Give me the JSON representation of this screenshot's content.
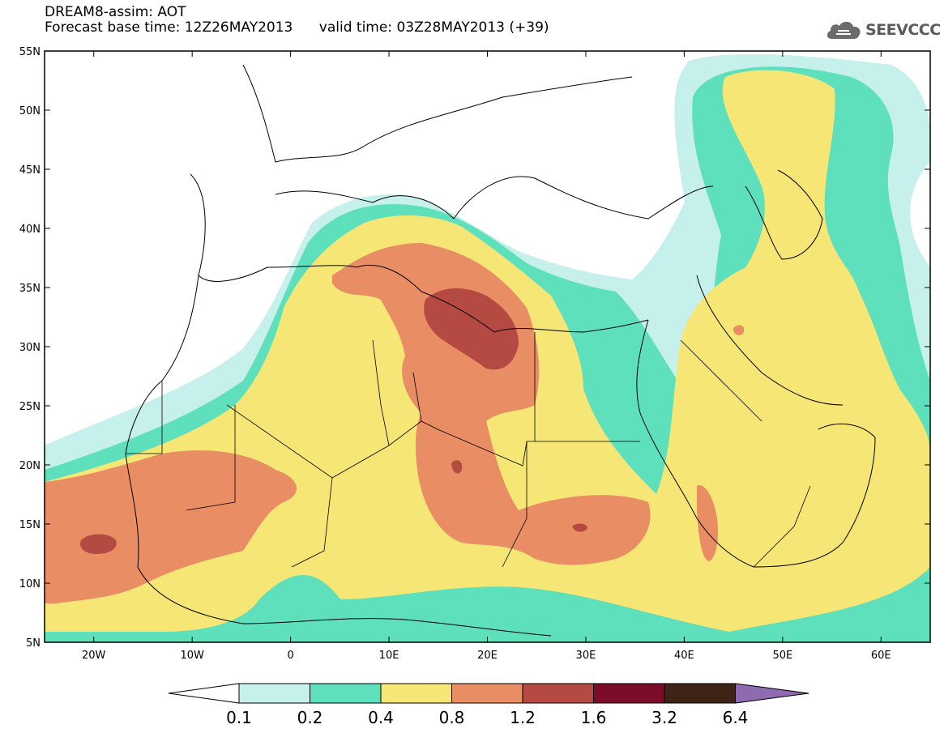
{
  "header": {
    "model": "DREAM8-assim: AOT",
    "base_label": "Forecast base time: 12Z26MAY2013",
    "valid_label": "valid time: 03Z28MAY2013 (+39)"
  },
  "logo": {
    "text": "SEEVCCC",
    "icon": "cloud-icon"
  },
  "map": {
    "lon_range": [
      -25,
      65
    ],
    "lat_range": [
      5,
      55
    ],
    "lat_ticks": [
      "5N",
      "10N",
      "15N",
      "20N",
      "25N",
      "30N",
      "35N",
      "40N",
      "45N",
      "50N",
      "55N"
    ],
    "lon_ticks": [
      "20W",
      "10W",
      "0",
      "10E",
      "20E",
      "30E",
      "40E",
      "50E",
      "60E"
    ]
  },
  "legend": {
    "labels": [
      "0.1",
      "0.2",
      "0.4",
      "0.8",
      "1.2",
      "1.6",
      "3.2",
      "6.4"
    ],
    "colors": [
      "#c6f0ec",
      "#5ee0bc",
      "#f5e676",
      "#e88d64",
      "#b54a42",
      "#7d0b2a",
      "#3d2416",
      "#8e6ab0"
    ]
  }
}
